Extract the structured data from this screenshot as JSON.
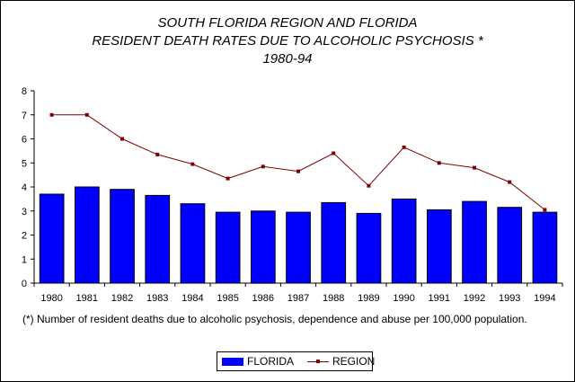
{
  "chart_data": {
    "type": "bar",
    "title": [
      "SOUTH FLORIDA REGION AND FLORIDA",
      "RESIDENT DEATH RATES DUE TO ALCOHOLIC PSYCHOSIS *",
      "1980-94"
    ],
    "categories": [
      "1980",
      "1981",
      "1982",
      "1983",
      "1984",
      "1985",
      "1986",
      "1987",
      "1988",
      "1989",
      "1990",
      "1991",
      "1992",
      "1993",
      "1994"
    ],
    "series": [
      {
        "name": "FLORIDA",
        "kind": "bar",
        "color": "#0000ff",
        "values": [
          3.7,
          4.0,
          3.9,
          3.65,
          3.3,
          2.95,
          3.0,
          2.95,
          3.35,
          2.9,
          3.5,
          3.05,
          3.4,
          3.15,
          2.95
        ]
      },
      {
        "name": "REGION",
        "kind": "line",
        "color": "#800000",
        "values": [
          7.0,
          7.0,
          6.0,
          5.35,
          4.95,
          4.35,
          4.85,
          4.65,
          5.4,
          4.05,
          5.65,
          5.0,
          4.8,
          4.2,
          3.05
        ]
      }
    ],
    "ylim": [
      0,
      8
    ],
    "yticks": [
      "0",
      "1",
      "2",
      "3",
      "4",
      "5",
      "6",
      "7",
      "8"
    ],
    "grid": false,
    "legend": "bottom",
    "footnote": "(*) Number of resident deaths due to alcoholic psychosis, dependence and abuse per 100,000 population."
  }
}
